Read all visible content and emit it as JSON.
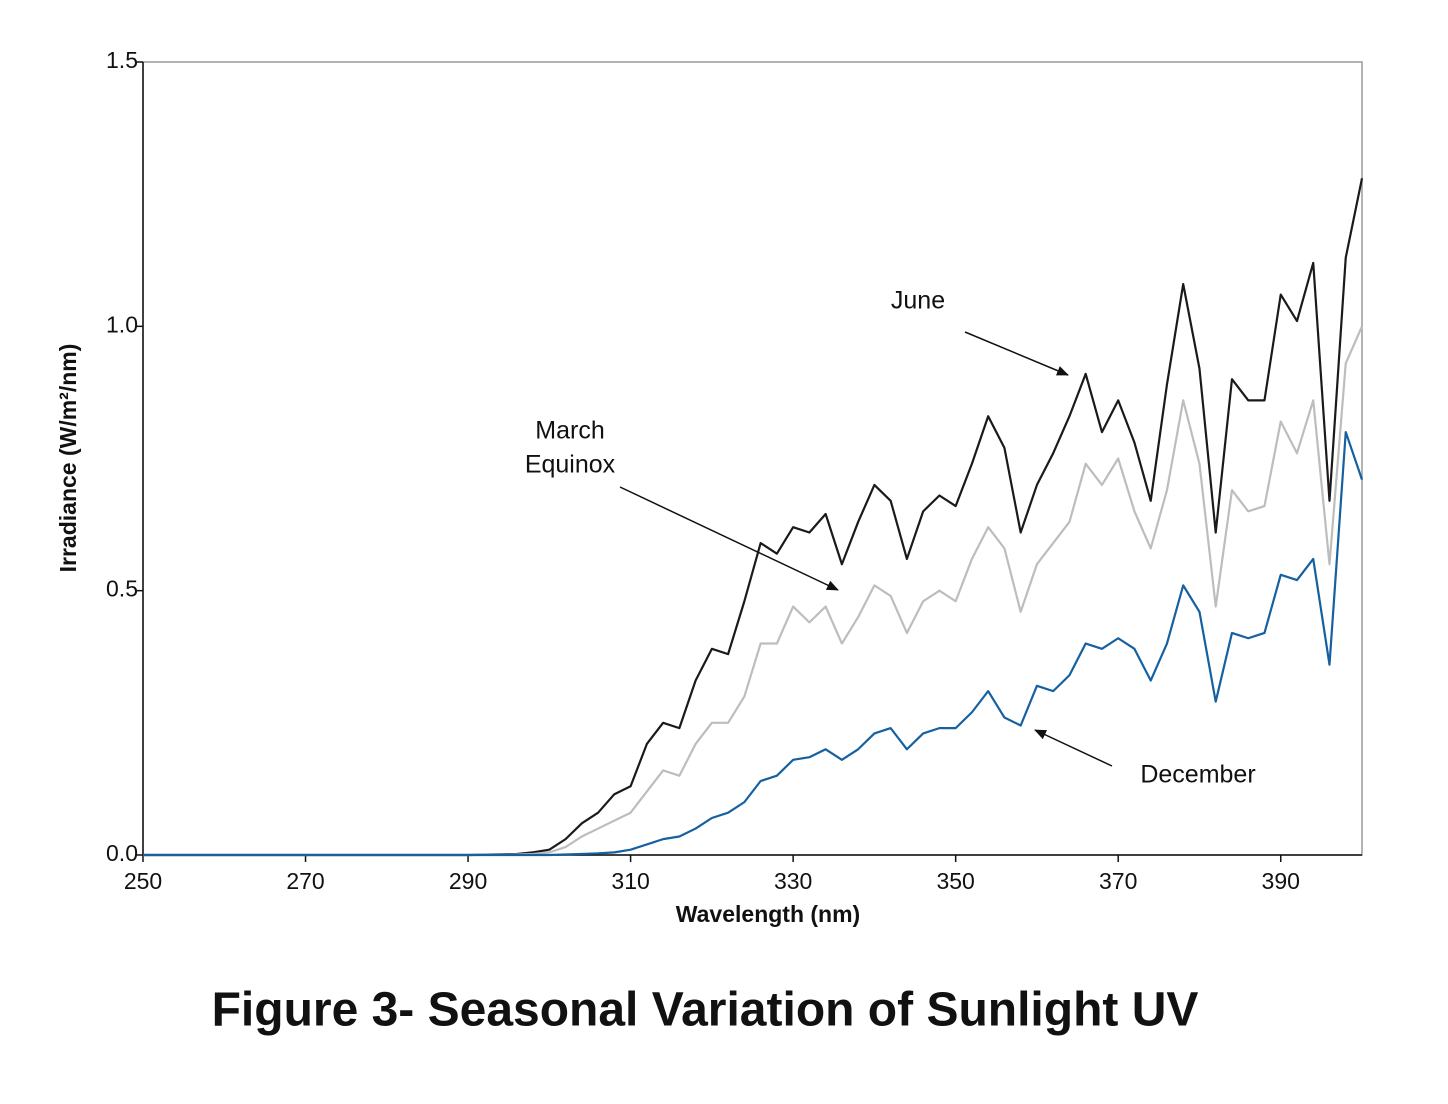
{
  "chart_data": {
    "type": "line",
    "title": "Figure 3- Seasonal Variation of Sunlight UV",
    "x_label": "Wavelength (nm)",
    "y_label": "Irradiance (W/m²/nm)",
    "x": [
      250,
      270,
      290,
      296,
      298,
      300,
      302,
      304,
      306,
      308,
      310,
      312,
      314,
      316,
      318,
      320,
      322,
      324,
      326,
      328,
      330,
      332,
      334,
      336,
      338,
      340,
      342,
      344,
      346,
      348,
      350,
      352,
      354,
      356,
      358,
      360,
      362,
      364,
      366,
      368,
      370,
      372,
      374,
      376,
      378,
      380,
      382,
      384,
      386,
      388,
      390,
      392,
      394,
      396,
      398,
      400
    ],
    "series": [
      {
        "name": "June",
        "color": "#1a1a1a",
        "values": [
          0,
          0,
          0,
          0.002,
          0.005,
          0.01,
          0.03,
          0.06,
          0.08,
          0.115,
          0.13,
          0.21,
          0.25,
          0.24,
          0.33,
          0.39,
          0.38,
          0.48,
          0.59,
          0.57,
          0.62,
          0.61,
          0.645,
          0.55,
          0.63,
          0.7,
          0.67,
          0.56,
          0.65,
          0.68,
          0.66,
          0.74,
          0.83,
          0.77,
          0.61,
          0.7,
          0.76,
          0.83,
          0.91,
          0.8,
          0.86,
          0.78,
          0.67,
          0.89,
          1.08,
          0.92,
          0.61,
          0.9,
          0.86,
          0.86,
          1.06,
          1.01,
          1.12,
          0.67,
          1.13,
          1.28
        ]
      },
      {
        "name": "March Equinox",
        "color": "#bdbdbd",
        "values": [
          0,
          0,
          0,
          0.001,
          0.002,
          0.005,
          0.015,
          0.035,
          0.05,
          0.065,
          0.08,
          0.12,
          0.16,
          0.15,
          0.21,
          0.25,
          0.25,
          0.3,
          0.4,
          0.4,
          0.47,
          0.44,
          0.47,
          0.4,
          0.45,
          0.51,
          0.49,
          0.42,
          0.48,
          0.5,
          0.48,
          0.56,
          0.62,
          0.58,
          0.46,
          0.55,
          0.59,
          0.63,
          0.74,
          0.7,
          0.75,
          0.65,
          0.58,
          0.69,
          0.86,
          0.74,
          0.47,
          0.69,
          0.65,
          0.66,
          0.82,
          0.76,
          0.86,
          0.55,
          0.93,
          1.0
        ]
      },
      {
        "name": "December",
        "color": "#1560a0",
        "values": [
          0,
          0,
          0,
          0,
          0,
          0,
          0.001,
          0.002,
          0.003,
          0.005,
          0.01,
          0.02,
          0.03,
          0.035,
          0.05,
          0.07,
          0.08,
          0.1,
          0.14,
          0.15,
          0.18,
          0.185,
          0.2,
          0.18,
          0.2,
          0.23,
          0.24,
          0.2,
          0.23,
          0.24,
          0.24,
          0.27,
          0.31,
          0.26,
          0.245,
          0.32,
          0.31,
          0.34,
          0.4,
          0.39,
          0.41,
          0.39,
          0.33,
          0.4,
          0.51,
          0.46,
          0.29,
          0.42,
          0.41,
          0.42,
          0.53,
          0.52,
          0.56,
          0.36,
          0.8,
          0.71
        ]
      }
    ],
    "annotations": [
      {
        "lines": [
          "June"
        ]
      },
      {
        "lines": [
          "March",
          "Equinox"
        ]
      },
      {
        "lines": [
          "December"
        ]
      }
    ],
    "xlim": [
      250,
      400
    ],
    "xticks": [
      250,
      270,
      290,
      310,
      330,
      350,
      370,
      390
    ],
    "ylim": [
      0,
      1.5
    ],
    "yticks": [
      {
        "value": 0,
        "label": "0.0"
      },
      0.5,
      {
        "value": 1,
        "label": "1.0"
      },
      1.5
    ],
    "grid": false
  }
}
